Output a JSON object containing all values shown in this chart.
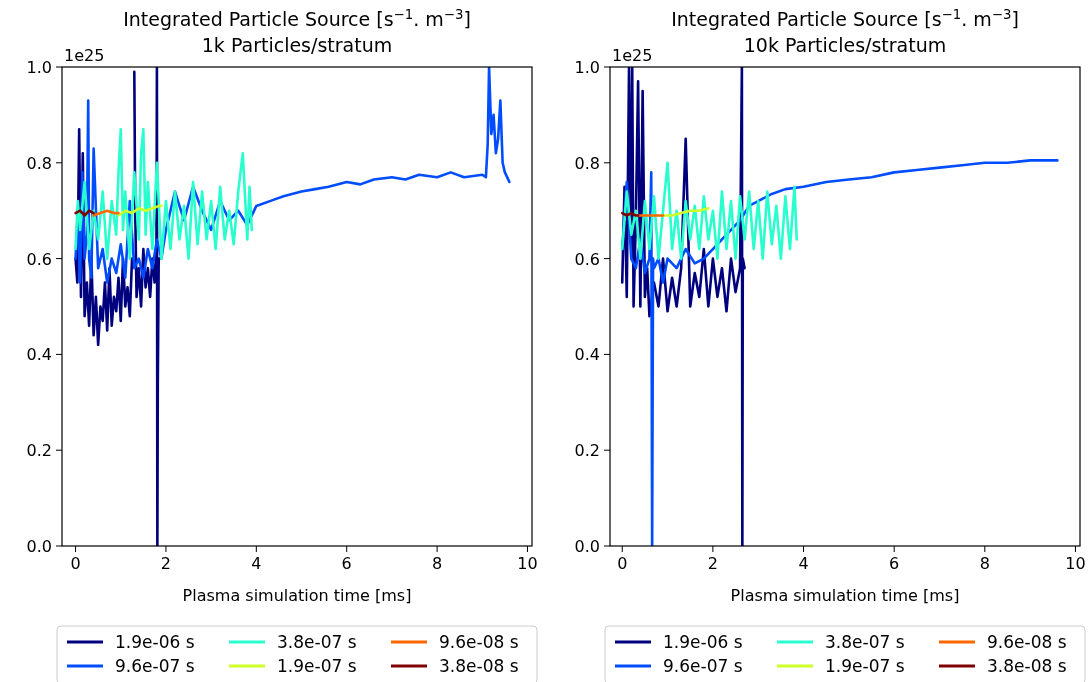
{
  "chart_data": [
    {
      "type": "line",
      "title": "Integrated Particle Source [s$^{−1}$. m$^{−3}$]",
      "subtitle": "1k Particles/stratum",
      "xlabel": "Plasma simulation time [ms]",
      "annotations": [
        "1e25"
      ],
      "xlim": [
        -0.3,
        10.1
      ],
      "xticks": [
        0,
        2,
        4,
        6,
        8,
        10
      ],
      "ylim": [
        0,
        1
      ],
      "yticks": [
        {
          "value": 0,
          "label": "0.0"
        },
        {
          "value": 0.2,
          "label": "0.2"
        },
        {
          "value": 0.4,
          "label": "0.4"
        },
        {
          "value": 0.6,
          "label": "0.6"
        },
        {
          "value": 0.8,
          "label": "0.8"
        },
        {
          "value": 1,
          "label": "1.0"
        }
      ],
      "legend": "bottom",
      "series": [
        {
          "name": "1.9e-06 s",
          "color": "#00007f",
          "x": [
            0,
            0.04,
            0.08,
            0.12,
            0.16,
            0.2,
            0.25,
            0.3,
            0.35,
            0.4,
            0.45,
            0.5,
            0.55,
            0.6,
            0.65,
            0.7,
            0.75,
            0.8,
            0.85,
            0.9,
            0.95,
            1.0,
            1.05,
            1.1,
            1.15,
            1.2,
            1.25,
            1.28,
            1.3,
            1.32,
            1.35,
            1.4,
            1.45,
            1.5,
            1.55,
            1.6,
            1.65,
            1.7,
            1.75,
            1.79,
            1.8,
            1.81,
            1.82,
            1.84,
            1.86
          ],
          "values": [
            0.6,
            0.55,
            0.87,
            0.52,
            0.82,
            0.48,
            0.55,
            0.46,
            0.6,
            0.44,
            0.52,
            0.42,
            0.5,
            0.47,
            0.55,
            0.45,
            0.58,
            0.46,
            0.52,
            0.49,
            0.56,
            0.47,
            0.6,
            0.5,
            0.54,
            0.48,
            0.6,
            null,
            0.99,
            0.7,
            0.52,
            0.58,
            0.5,
            0.62,
            0.54,
            0.58,
            0.52,
            0.6,
            0.55,
            0.62,
            1.0,
            0.0,
            0.34,
            0.6,
            0.6
          ]
        },
        {
          "name": "9.6e-07 s",
          "color": "#004cff",
          "x": [
            0,
            0.05,
            0.1,
            0.15,
            0.2,
            0.25,
            0.28,
            0.3,
            0.35,
            0.4,
            0.5,
            0.6,
            0.7,
            0.8,
            0.9,
            1.0,
            1.1,
            1.2,
            1.3,
            1.4,
            1.5,
            1.6,
            1.7,
            1.8,
            1.9,
            2.0,
            2.2,
            2.4,
            2.6,
            2.8,
            3.0,
            3.2,
            3.4,
            3.6,
            3.8,
            4.0,
            4.3,
            4.6,
            5.0,
            5.3,
            5.6,
            6.0,
            6.3,
            6.6,
            7.0,
            7.3,
            7.6,
            8.0,
            8.3,
            8.6,
            9.0,
            9.08,
            9.12,
            9.15,
            9.2,
            9.25,
            9.3,
            9.35,
            9.4,
            9.45,
            9.5,
            9.55,
            9.6
          ],
          "values": [
            0.6,
            0.7,
            0.55,
            0.78,
            0.6,
            0.65,
            0.93,
            0.6,
            0.56,
            0.83,
            0.58,
            0.62,
            0.55,
            0.6,
            0.57,
            0.63,
            0.56,
            0.72,
            0.58,
            0.6,
            0.56,
            0.62,
            0.58,
            0.64,
            0.6,
            0.66,
            0.74,
            0.68,
            0.75,
            0.7,
            0.66,
            0.72,
            0.68,
            0.7,
            0.67,
            0.71,
            0.72,
            0.73,
            0.74,
            0.745,
            0.75,
            0.76,
            0.755,
            0.765,
            0.77,
            0.765,
            0.775,
            0.77,
            0.78,
            0.77,
            0.775,
            0.77,
            0.84,
            1.0,
            0.86,
            0.9,
            0.82,
            0.85,
            0.93,
            0.8,
            0.78,
            0.77,
            0.76
          ]
        },
        {
          "name": "3.8e-07 s",
          "color": "#29ffce",
          "x": [
            0,
            0.05,
            0.1,
            0.2,
            0.3,
            0.4,
            0.5,
            0.6,
            0.7,
            0.8,
            0.9,
            0.95,
            1.0,
            1.05,
            1.1,
            1.2,
            1.3,
            1.4,
            1.45,
            1.5,
            1.55,
            1.6,
            1.7,
            1.8,
            1.9,
            2.0,
            2.1,
            2.2,
            2.3,
            2.4,
            2.5,
            2.6,
            2.7,
            2.8,
            2.9,
            3.0,
            3.1,
            3.2,
            3.3,
            3.4,
            3.5,
            3.6,
            3.7,
            3.8,
            3.85,
            3.9
          ],
          "values": [
            0.62,
            0.72,
            0.66,
            0.76,
            0.62,
            0.7,
            0.64,
            0.74,
            0.6,
            0.72,
            0.65,
            0.78,
            0.87,
            0.66,
            0.74,
            0.6,
            0.78,
            0.64,
            0.82,
            0.87,
            0.65,
            0.76,
            0.62,
            0.8,
            0.6,
            0.72,
            0.62,
            0.74,
            0.64,
            0.71,
            0.6,
            0.76,
            0.63,
            0.74,
            0.64,
            0.72,
            0.62,
            0.75,
            0.64,
            0.7,
            0.63,
            0.74,
            0.82,
            0.64,
            0.75,
            0.66
          ]
        },
        {
          "name": "1.9e-07 s",
          "color": "#ceff29",
          "x": [
            0.95,
            1.1,
            1.25,
            1.4,
            1.55,
            1.7,
            1.85,
            1.9
          ],
          "values": [
            0.69,
            0.7,
            0.695,
            0.705,
            0.7,
            0.705,
            0.71,
            0.71
          ]
        },
        {
          "name": "9.6e-08 s",
          "color": "#ff6800",
          "x": [
            0.4,
            0.55,
            0.7,
            0.85,
            0.95
          ],
          "values": [
            0.69,
            0.695,
            0.7,
            0.695,
            0.695
          ]
        },
        {
          "name": "3.8e-08 s",
          "color": "#7f0000",
          "x": [
            0,
            0.1,
            0.2,
            0.3,
            0.4
          ],
          "values": [
            0.695,
            0.7,
            0.69,
            0.7,
            0.695
          ]
        }
      ]
    },
    {
      "type": "line",
      "title": "Integrated Particle Source [s$^{−1}$. m$^{−3}$]",
      "subtitle": "10k Particles/stratum",
      "xlabel": "Plasma simulation time [ms]",
      "annotations": [
        "1e25"
      ],
      "xlim": [
        -0.27,
        10.1
      ],
      "xticks": [
        0,
        2,
        4,
        6,
        8,
        10
      ],
      "ylim": [
        0,
        1
      ],
      "yticks": [
        {
          "value": 0,
          "label": "0.0"
        },
        {
          "value": 0.2,
          "label": "0.2"
        },
        {
          "value": 0.4,
          "label": "0.4"
        },
        {
          "value": 0.6,
          "label": "0.6"
        },
        {
          "value": 0.8,
          "label": "0.8"
        },
        {
          "value": 1,
          "label": "1.0"
        }
      ],
      "legend": "bottom",
      "series": [
        {
          "name": "1.9e-06 s",
          "color": "#00007f",
          "x": [
            0,
            0.05,
            0.1,
            0.15,
            0.2,
            0.22,
            0.25,
            0.3,
            0.35,
            0.4,
            0.45,
            0.5,
            0.55,
            0.6,
            0.7,
            0.8,
            0.9,
            1.0,
            1.1,
            1.2,
            1.3,
            1.4,
            1.5,
            1.6,
            1.7,
            1.8,
            1.9,
            2.0,
            2.1,
            2.2,
            2.3,
            2.4,
            2.5,
            2.6,
            2.64,
            2.65,
            2.66,
            2.7
          ],
          "values": [
            0.55,
            0.75,
            0.52,
            1.0,
            0.6,
            1.0,
            0.5,
            0.68,
            0.97,
            0.5,
            0.95,
            0.52,
            0.58,
            0.48,
            0.55,
            0.5,
            0.6,
            0.49,
            0.56,
            0.5,
            0.58,
            0.85,
            0.5,
            0.57,
            0.52,
            0.62,
            0.5,
            0.6,
            0.52,
            0.58,
            0.49,
            0.6,
            0.53,
            0.58,
            1.0,
            0.0,
            0.6,
            0.58
          ]
        },
        {
          "name": "9.6e-07 s",
          "color": "#004cff",
          "x": [
            0,
            0.1,
            0.2,
            0.3,
            0.4,
            0.5,
            0.6,
            0.64,
            0.66,
            0.68,
            0.7,
            0.8,
            0.9,
            1.0,
            1.2,
            1.4,
            1.6,
            1.8,
            2.0,
            2.2,
            2.4,
            2.6,
            2.8,
            3.0,
            3.3,
            3.6,
            4.0,
            4.5,
            5.0,
            5.5,
            6.0,
            6.5,
            7.0,
            7.5,
            8.0,
            8.5,
            9.0,
            9.3,
            9.6
          ],
          "values": [
            0.62,
            0.76,
            0.6,
            0.58,
            0.64,
            0.57,
            0.6,
            0.78,
            0.0,
            0.6,
            0.58,
            0.6,
            0.55,
            0.6,
            0.58,
            0.62,
            0.59,
            0.6,
            0.62,
            0.64,
            0.66,
            0.68,
            0.71,
            0.72,
            0.735,
            0.745,
            0.75,
            0.76,
            0.765,
            0.77,
            0.78,
            0.785,
            0.79,
            0.795,
            0.8,
            0.8,
            0.805,
            0.805,
            0.805
          ]
        },
        {
          "name": "3.8e-07 s",
          "color": "#29ffce",
          "x": [
            0,
            0.1,
            0.2,
            0.3,
            0.4,
            0.5,
            0.6,
            0.7,
            0.8,
            0.9,
            1.0,
            1.1,
            1.2,
            1.3,
            1.4,
            1.5,
            1.6,
            1.7,
            1.8,
            1.9,
            2.0,
            2.1,
            2.2,
            2.3,
            2.4,
            2.5,
            2.6,
            2.7,
            2.8,
            2.9,
            3.0,
            3.1,
            3.2,
            3.3,
            3.4,
            3.5,
            3.6,
            3.7,
            3.8,
            3.85
          ],
          "values": [
            0.62,
            0.74,
            0.65,
            0.7,
            0.6,
            0.72,
            0.62,
            0.73,
            0.6,
            0.7,
            0.8,
            0.62,
            0.7,
            0.6,
            0.72,
            0.64,
            0.71,
            0.62,
            0.73,
            0.64,
            0.7,
            0.6,
            0.74,
            0.62,
            0.72,
            0.6,
            0.73,
            0.64,
            0.74,
            0.62,
            0.72,
            0.6,
            0.74,
            0.63,
            0.71,
            0.6,
            0.73,
            0.62,
            0.75,
            0.64
          ]
        },
        {
          "name": "1.9e-07 s",
          "color": "#ceff29",
          "x": [
            0.9,
            1.1,
            1.3,
            1.5,
            1.7,
            1.9
          ],
          "values": [
            0.69,
            0.69,
            0.695,
            0.7,
            0.7,
            0.705
          ]
        },
        {
          "name": "9.6e-08 s",
          "color": "#ff6800",
          "x": [
            0.35,
            0.5,
            0.65,
            0.8,
            0.9
          ],
          "values": [
            0.69,
            0.69,
            0.69,
            0.69,
            0.69
          ]
        },
        {
          "name": "3.8e-08 s",
          "color": "#7f0000",
          "x": [
            0,
            0.1,
            0.2,
            0.3,
            0.35
          ],
          "values": [
            0.695,
            0.69,
            0.695,
            0.69,
            0.69
          ]
        }
      ]
    }
  ]
}
